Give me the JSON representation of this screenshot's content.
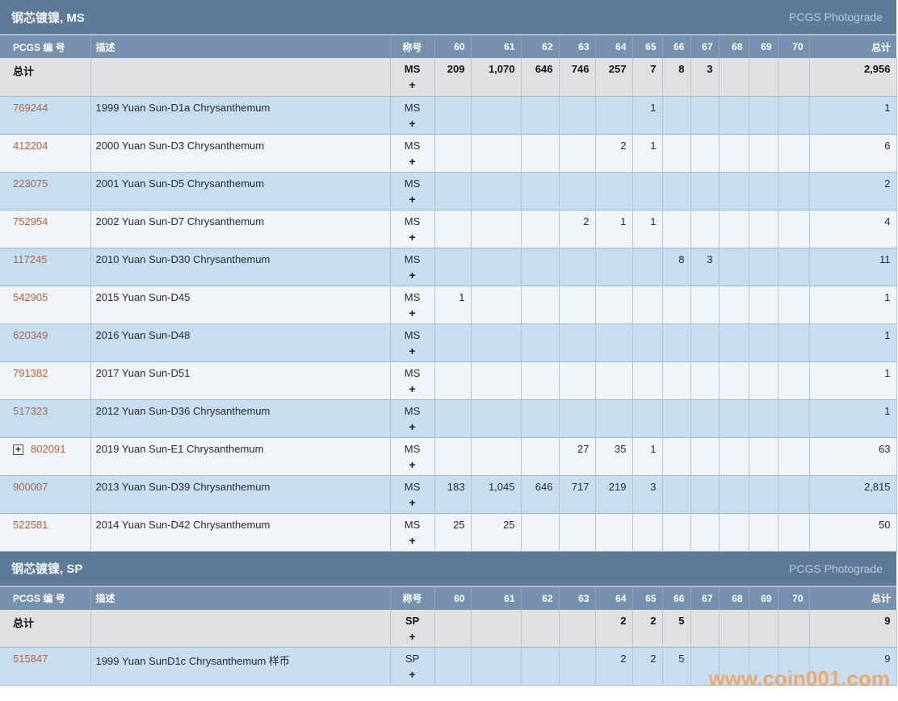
{
  "brand": {
    "photograde_label": "PCGS Photograde",
    "watermark": "www.coin001.com"
  },
  "theme": {
    "title_bar_color": "#5d7a96",
    "header_bar_color": "#7691ae",
    "row_blue_color": "#c7def1",
    "row_light_color": "#eff4f9",
    "totals_row_color": "#e0e0e2",
    "link_color": "#b4643c",
    "watermark_color": "#f2a055"
  },
  "columns": {
    "pcgs_no": "PCGS 编 号",
    "description": "描述",
    "designation": "称号",
    "grades": [
      "60",
      "61",
      "62",
      "63",
      "64",
      "65",
      "66",
      "67",
      "68",
      "69",
      "70"
    ],
    "total": "总计"
  },
  "totals_label": "总计",
  "plus_label": "+",
  "sections": [
    {
      "title": "钢芯镀镍, MS",
      "designation": "MS",
      "totals": {
        "grades": [
          "209",
          "1,070",
          "646",
          "746",
          "257",
          "7",
          "8",
          "3",
          "",
          "",
          ""
        ],
        "total": "2,956"
      },
      "rows": [
        {
          "pcgs": "769244",
          "expand": false,
          "desc": "1999 Yuan Sun-D1a Chrysanthemum",
          "grades": [
            "",
            "",
            "",
            "",
            "",
            "1",
            "",
            "",
            "",
            "",
            ""
          ],
          "total": "1"
        },
        {
          "pcgs": "412204",
          "expand": false,
          "desc": "2000 Yuan Sun-D3 Chrysanthemum",
          "grades": [
            "",
            "",
            "",
            "",
            "2",
            "1",
            "",
            "",
            "",
            "",
            ""
          ],
          "total": "6"
        },
        {
          "pcgs": "223075",
          "expand": false,
          "desc": "2001 Yuan Sun-D5 Chrysanthemum",
          "grades": [
            "",
            "",
            "",
            "",
            "",
            "",
            "",
            "",
            "",
            "",
            ""
          ],
          "total": "2"
        },
        {
          "pcgs": "752954",
          "expand": false,
          "desc": "2002 Yuan Sun-D7 Chrysanthemum",
          "grades": [
            "",
            "",
            "",
            "2",
            "1",
            "1",
            "",
            "",
            "",
            "",
            ""
          ],
          "total": "4"
        },
        {
          "pcgs": "117245",
          "expand": false,
          "desc": "2010 Yuan Sun-D30 Chrysanthemum",
          "grades": [
            "",
            "",
            "",
            "",
            "",
            "",
            "8",
            "3",
            "",
            "",
            ""
          ],
          "total": "11"
        },
        {
          "pcgs": "542905",
          "expand": false,
          "desc": "2015 Yuan Sun-D45",
          "grades": [
            "1",
            "",
            "",
            "",
            "",
            "",
            "",
            "",
            "",
            "",
            ""
          ],
          "total": "1"
        },
        {
          "pcgs": "620349",
          "expand": false,
          "desc": "2016 Yuan Sun-D48",
          "grades": [
            "",
            "",
            "",
            "",
            "",
            "",
            "",
            "",
            "",
            "",
            ""
          ],
          "total": "1"
        },
        {
          "pcgs": "791382",
          "expand": false,
          "desc": "2017 Yuan Sun-D51",
          "grades": [
            "",
            "",
            "",
            "",
            "",
            "",
            "",
            "",
            "",
            "",
            ""
          ],
          "total": "1"
        },
        {
          "pcgs": "517323",
          "expand": false,
          "desc": "2012 Yuan Sun-D36 Chrysanthemum",
          "grades": [
            "",
            "",
            "",
            "",
            "",
            "",
            "",
            "",
            "",
            "",
            ""
          ],
          "total": "1"
        },
        {
          "pcgs": "802091",
          "expand": true,
          "desc": "2019 Yuan Sun-E1 Chrysanthemum",
          "grades": [
            "",
            "",
            "",
            "27",
            "35",
            "1",
            "",
            "",
            "",
            "",
            ""
          ],
          "total": "63"
        },
        {
          "pcgs": "900007",
          "expand": false,
          "desc": "2013 Yuan Sun-D39 Chrysanthemum",
          "grades": [
            "183",
            "1,045",
            "646",
            "717",
            "219",
            "3",
            "",
            "",
            "",
            "",
            ""
          ],
          "total": "2,815"
        },
        {
          "pcgs": "522581",
          "expand": false,
          "desc": "2014 Yuan Sun-D42 Chrysanthemum",
          "grades": [
            "25",
            "25",
            "",
            "",
            "",
            "",
            "",
            "",
            "",
            "",
            ""
          ],
          "total": "50"
        }
      ]
    },
    {
      "title": "钢芯镀镍, SP",
      "designation": "SP",
      "totals": {
        "grades": [
          "",
          "",
          "",
          "",
          "2",
          "2",
          "5",
          "",
          "",
          "",
          ""
        ],
        "total": "9"
      },
      "rows": [
        {
          "pcgs": "515847",
          "expand": false,
          "desc": "1999 Yuan SunD1c Chrysanthemum 样币",
          "grades": [
            "",
            "",
            "",
            "",
            "2",
            "2",
            "5",
            "",
            "",
            "",
            ""
          ],
          "total": "9"
        }
      ]
    }
  ]
}
